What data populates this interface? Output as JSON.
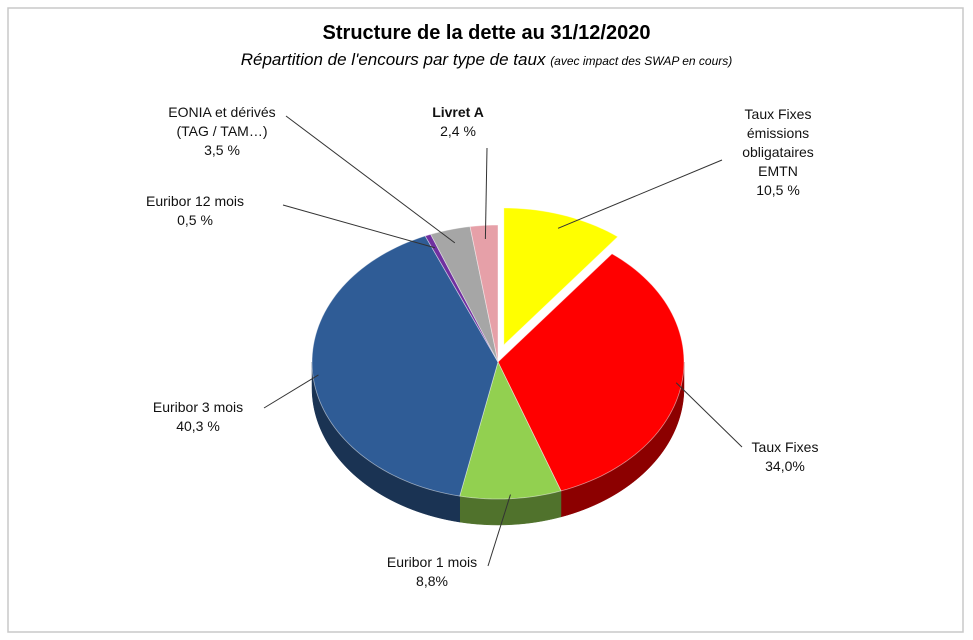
{
  "chart_data": {
    "type": "pie3d",
    "title": "Structure de la dette au 31/12/2020",
    "subtitle": "Répartition de l'encours par type de taux",
    "subtitle_note": "(avec impact des SWAP en cours)",
    "categories": [
      "Taux Fixes\némissions\nobligataires\nEMTN",
      "Taux Fixes",
      "Euribor 1 mois",
      "Euribor 3 mois",
      "Euribor 12 mois",
      "EONIA et dérivés\n(TAG / TAM…)",
      "Livret A"
    ],
    "values": [
      10.5,
      34.0,
      8.8,
      40.3,
      0.5,
      3.5,
      2.4
    ],
    "value_labels": [
      "10,5 %",
      "34,0%",
      "8,8%",
      "40,3 %",
      "0,5 %",
      "3,5 %",
      "2,4 %"
    ],
    "colors": [
      "#ffff00",
      "#ff0000",
      "#92d050",
      "#2f5c96",
      "#7030a0",
      "#a6a6a6",
      "#e6a0a8"
    ],
    "exploded": [
      0
    ]
  }
}
